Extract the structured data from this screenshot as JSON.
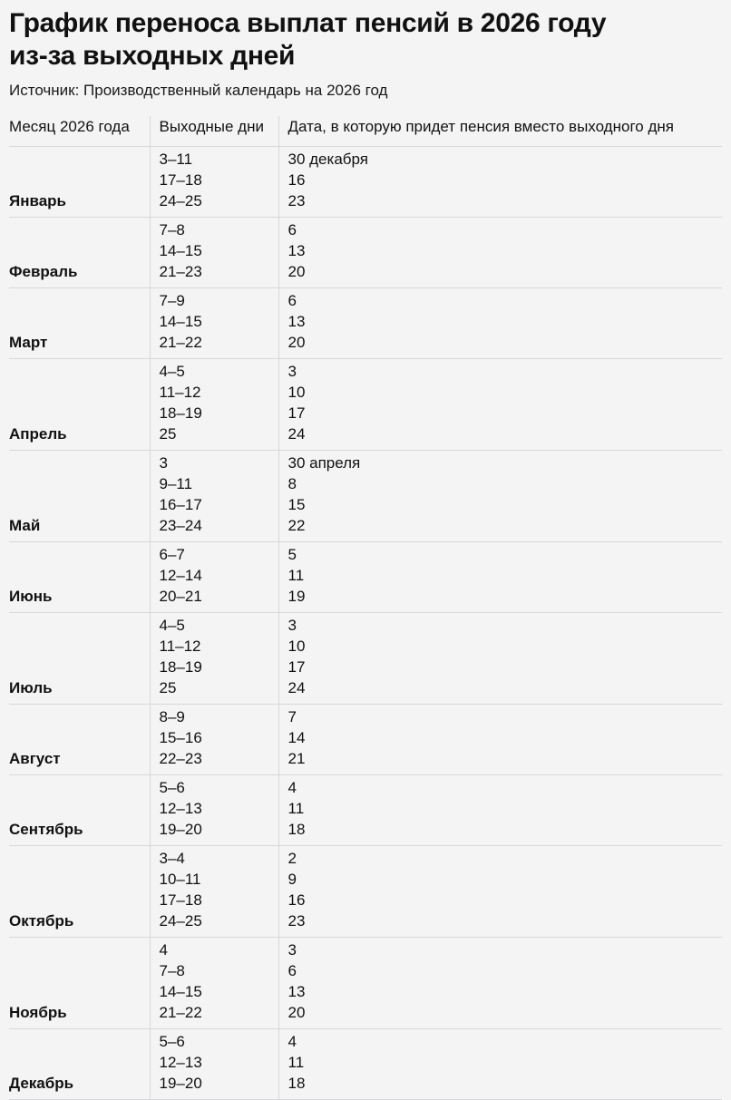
{
  "page": {
    "title_line1": "График переноса выплат пенсий в 2026 году",
    "title_line2": "из-за выходных дней",
    "source": "Источник: Производственный календарь на 2026 год"
  },
  "colors": {
    "background": "#f4f4f5",
    "divider": "#d8d8da",
    "text": "#111111"
  },
  "chart_data": {
    "type": "table",
    "title": "График переноса выплат пенсий в 2026 году из-за выходных дней",
    "subtitle": "Источник: Производственный календарь на 2026 год",
    "columns": [
      "Месяц 2026 года",
      "Выходные дни",
      "Дата, в которую придет пенсия вместо выходного дня"
    ],
    "groups": [
      {
        "month": "Январь",
        "rows": [
          [
            "3–11",
            "30 декабря"
          ],
          [
            "17–18",
            "16"
          ],
          [
            "24–25",
            "23"
          ]
        ]
      },
      {
        "month": "Февраль",
        "rows": [
          [
            "7–8",
            "6"
          ],
          [
            "14–15",
            "13"
          ],
          [
            "21–23",
            "20"
          ]
        ]
      },
      {
        "month": "Март",
        "rows": [
          [
            "7–9",
            "6"
          ],
          [
            "14–15",
            "13"
          ],
          [
            "21–22",
            "20"
          ]
        ]
      },
      {
        "month": "Апрель",
        "rows": [
          [
            "4–5",
            "3"
          ],
          [
            "11–12",
            "10"
          ],
          [
            "18–19",
            "17"
          ],
          [
            "25",
            "24"
          ]
        ]
      },
      {
        "month": "Май",
        "rows": [
          [
            "3",
            "30 апреля"
          ],
          [
            "9–11",
            "8"
          ],
          [
            "16–17",
            "15"
          ],
          [
            "23–24",
            "22"
          ]
        ]
      },
      {
        "month": "Июнь",
        "rows": [
          [
            "6–7",
            "5"
          ],
          [
            "12–14",
            "11"
          ],
          [
            "20–21",
            "19"
          ]
        ]
      },
      {
        "month": "Июль",
        "rows": [
          [
            "4–5",
            "3"
          ],
          [
            "11–12",
            "10"
          ],
          [
            "18–19",
            "17"
          ],
          [
            "25",
            "24"
          ]
        ]
      },
      {
        "month": "Август",
        "rows": [
          [
            "8–9",
            "7"
          ],
          [
            "15–16",
            "14"
          ],
          [
            "22–23",
            "21"
          ]
        ]
      },
      {
        "month": "Сентябрь",
        "rows": [
          [
            "5–6",
            "4"
          ],
          [
            "12–13",
            "11"
          ],
          [
            "19–20",
            "18"
          ]
        ]
      },
      {
        "month": "Октябрь",
        "rows": [
          [
            "3–4",
            "2"
          ],
          [
            "10–11",
            "9"
          ],
          [
            "17–18",
            "16"
          ],
          [
            "24–25",
            "23"
          ]
        ]
      },
      {
        "month": "Ноябрь",
        "rows": [
          [
            "4",
            "3"
          ],
          [
            "7–8",
            "6"
          ],
          [
            "14–15",
            "13"
          ],
          [
            "21–22",
            "20"
          ]
        ]
      },
      {
        "month": "Декабрь",
        "rows": [
          [
            "5–6",
            "4"
          ],
          [
            "12–13",
            "11"
          ],
          [
            "19–20",
            "18"
          ]
        ]
      }
    ]
  }
}
